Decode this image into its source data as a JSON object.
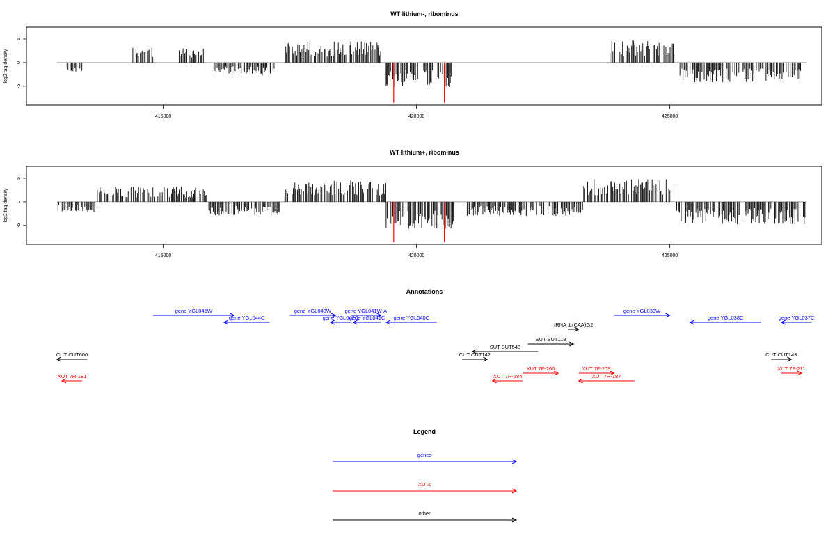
{
  "colors": {
    "genes": "#0000ff",
    "xuts": "#ff0000",
    "other": "#000000",
    "signal": "#000000",
    "highlight": "#ff0000",
    "baseline": "#808080"
  },
  "chart_data": [
    {
      "type": "bar",
      "title": "WT lithium-, ribominus",
      "ylabel": "log2 tag density",
      "xlim": [
        412300,
        428000
      ],
      "ylim": [
        -9,
        7.5
      ],
      "xticks": [
        "415000",
        "420000",
        "425000"
      ],
      "yticks": [
        "5",
        "0",
        "-5"
      ],
      "grid": false,
      "segments": [
        {
          "start": 413100,
          "end": 413400,
          "density": 1.6,
          "sign": -1
        },
        {
          "start": 414400,
          "end": 414800,
          "density": 2.8,
          "sign": 1
        },
        {
          "start": 415300,
          "end": 415800,
          "density": 2.4,
          "sign": 1
        },
        {
          "start": 416000,
          "end": 417200,
          "density": 2.2,
          "sign": -1
        },
        {
          "start": 417400,
          "end": 419300,
          "density": 3.6,
          "sign": 1
        },
        {
          "start": 419400,
          "end": 420700,
          "density": 4.2,
          "sign": -1
        },
        {
          "start": 423800,
          "end": 425100,
          "density": 3.8,
          "sign": 1
        },
        {
          "start": 425200,
          "end": 427600,
          "density": 3.4,
          "sign": -1
        }
      ],
      "highlights": [
        {
          "x": 419550,
          "value": -8.5
        },
        {
          "x": 420550,
          "value": -8.5
        }
      ]
    },
    {
      "type": "bar",
      "title": "WT lithium+, ribominus",
      "ylabel": "log2 tag density",
      "xlim": [
        412300,
        428000
      ],
      "ylim": [
        -9,
        7.5
      ],
      "xticks": [
        "415000",
        "420000",
        "425000"
      ],
      "yticks": [
        "5",
        "0",
        "-5"
      ],
      "grid": false,
      "segments": [
        {
          "start": 412900,
          "end": 413700,
          "density": 1.8,
          "sign": -1
        },
        {
          "start": 413700,
          "end": 415900,
          "density": 2.6,
          "sign": 1
        },
        {
          "start": 415900,
          "end": 417300,
          "density": 2.4,
          "sign": -1
        },
        {
          "start": 417400,
          "end": 419400,
          "density": 3.6,
          "sign": 1
        },
        {
          "start": 419400,
          "end": 420800,
          "density": 4.6,
          "sign": -1
        },
        {
          "start": 421000,
          "end": 423300,
          "density": 2.4,
          "sign": -1
        },
        {
          "start": 423300,
          "end": 425100,
          "density": 4.0,
          "sign": 1
        },
        {
          "start": 425100,
          "end": 427700,
          "density": 3.8,
          "sign": -1
        }
      ],
      "highlights": [
        {
          "x": 419550,
          "value": -8.5
        },
        {
          "x": 420550,
          "value": -8.5
        }
      ]
    }
  ],
  "annotations": {
    "title": "Annotations",
    "items": [
      {
        "label": "gene YGL045W",
        "type": "genes",
        "start": 414800,
        "end": 416400,
        "strand": "+",
        "row": 0
      },
      {
        "label": "gene YGL044C",
        "type": "genes",
        "start": 416200,
        "end": 417100,
        "strand": "-",
        "row": 1
      },
      {
        "label": "gene YGL043W",
        "type": "genes",
        "start": 417500,
        "end": 418400,
        "strand": "+",
        "row": 0
      },
      {
        "label": "gene YGL042C",
        "type": "genes",
        "start": 418300,
        "end": 418700,
        "strand": "-",
        "row": 1
      },
      {
        "label": "gene YGL041W-A",
        "type": "genes",
        "start": 418700,
        "end": 419300,
        "strand": "+",
        "row": 0
      },
      {
        "label": "gene YGL041C",
        "type": "genes",
        "start": 418750,
        "end": 419300,
        "strand": "-",
        "row": 1
      },
      {
        "label": "gene YGL040C",
        "type": "genes",
        "start": 419400,
        "end": 420400,
        "strand": "-",
        "row": 1
      },
      {
        "label": "gene YGL039W",
        "type": "genes",
        "start": 423900,
        "end": 425000,
        "strand": "+",
        "row": 0
      },
      {
        "label": "gene YGL038C",
        "type": "genes",
        "start": 425400,
        "end": 426800,
        "strand": "-",
        "row": 1
      },
      {
        "label": "gene YGL037C",
        "type": "genes",
        "start": 427200,
        "end": 427800,
        "strand": "-",
        "row": 1
      },
      {
        "label": "tRNA tL(CAA)G2",
        "type": "other",
        "start": 423000,
        "end": 423200,
        "strand": "+",
        "row": 2
      },
      {
        "label": "SUT SUT118",
        "type": "other",
        "start": 422200,
        "end": 423100,
        "strand": "+",
        "row": 3
      },
      {
        "label": "SUT SUT548",
        "type": "other",
        "start": 421100,
        "end": 422400,
        "strand": "-",
        "row": 4
      },
      {
        "label": "CUT CUT142",
        "type": "other",
        "start": 420900,
        "end": 421400,
        "strand": "+",
        "row": 5
      },
      {
        "label": "CUT CUT600",
        "type": "other",
        "start": 412900,
        "end": 413500,
        "strand": "-",
        "row": 5
      },
      {
        "label": "CUT CUT143",
        "type": "other",
        "start": 427000,
        "end": 427400,
        "strand": "+",
        "row": 5
      },
      {
        "label": "XUT 7R-181",
        "type": "xuts",
        "start": 413000,
        "end": 413400,
        "strand": "-",
        "row": 7
      },
      {
        "label": "XUT 7R-184",
        "type": "xuts",
        "start": 421500,
        "end": 422100,
        "strand": "-",
        "row": 7
      },
      {
        "label": "XUT 7F-206",
        "type": "xuts",
        "start": 422100,
        "end": 422800,
        "strand": "+",
        "row": 6
      },
      {
        "label": "XUT 7F-209",
        "type": "xuts",
        "start": 423200,
        "end": 423900,
        "strand": "+",
        "row": 6
      },
      {
        "label": "XUT 7R-187",
        "type": "xuts",
        "start": 423200,
        "end": 424300,
        "strand": "-",
        "row": 7
      },
      {
        "label": "XUT 7F-211",
        "type": "xuts",
        "start": 427200,
        "end": 427600,
        "strand": "+",
        "row": 6
      }
    ]
  },
  "legend": {
    "title": "Legend",
    "items": [
      {
        "label": "genes",
        "type": "genes"
      },
      {
        "label": "XUTs",
        "type": "xuts"
      },
      {
        "label": "other",
        "type": "other"
      }
    ]
  }
}
